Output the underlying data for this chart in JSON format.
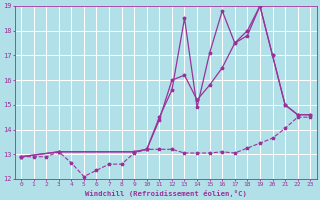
{
  "bg_color": "#b2e0e8",
  "grid_color": "#ffffff",
  "line_color": "#993399",
  "xlabel": "Windchill (Refroidissement éolien,°C)",
  "xlim": [
    -0.5,
    23.5
  ],
  "ylim": [
    12,
    19
  ],
  "yticks": [
    12,
    13,
    14,
    15,
    16,
    17,
    18,
    19
  ],
  "xticks": [
    0,
    1,
    2,
    3,
    4,
    5,
    6,
    7,
    8,
    9,
    10,
    11,
    12,
    13,
    14,
    15,
    16,
    17,
    18,
    19,
    20,
    21,
    22,
    23
  ],
  "line1_x": [
    0,
    1,
    2,
    3,
    4,
    5,
    6,
    7,
    8,
    9,
    10,
    11,
    12,
    13,
    14,
    15,
    16,
    17,
    18,
    19,
    20,
    21,
    22,
    23
  ],
  "line1_y": [
    12.9,
    12.9,
    12.9,
    13.1,
    12.65,
    12.1,
    12.35,
    12.6,
    12.6,
    13.05,
    13.2,
    13.2,
    13.2,
    13.05,
    13.05,
    13.05,
    13.1,
    13.05,
    13.25,
    13.45,
    13.65,
    14.05,
    14.5,
    14.5
  ],
  "line2_x": [
    0,
    3,
    9,
    10,
    11,
    12,
    13,
    14,
    15,
    16,
    17,
    18,
    19,
    20,
    21,
    22,
    23
  ],
  "line2_y": [
    12.9,
    13.1,
    13.1,
    13.2,
    14.5,
    15.6,
    18.5,
    14.9,
    17.1,
    18.8,
    17.5,
    17.8,
    19.0,
    17.0,
    15.0,
    14.6,
    14.6
  ],
  "line3_x": [
    0,
    3,
    9,
    10,
    11,
    12,
    13,
    14,
    15,
    16,
    17,
    18,
    19,
    20,
    21,
    22,
    23
  ],
  "line3_y": [
    12.9,
    13.1,
    13.1,
    13.2,
    14.4,
    16.0,
    16.2,
    15.2,
    15.8,
    16.5,
    17.5,
    18.0,
    19.0,
    17.0,
    15.0,
    14.6,
    14.6
  ]
}
